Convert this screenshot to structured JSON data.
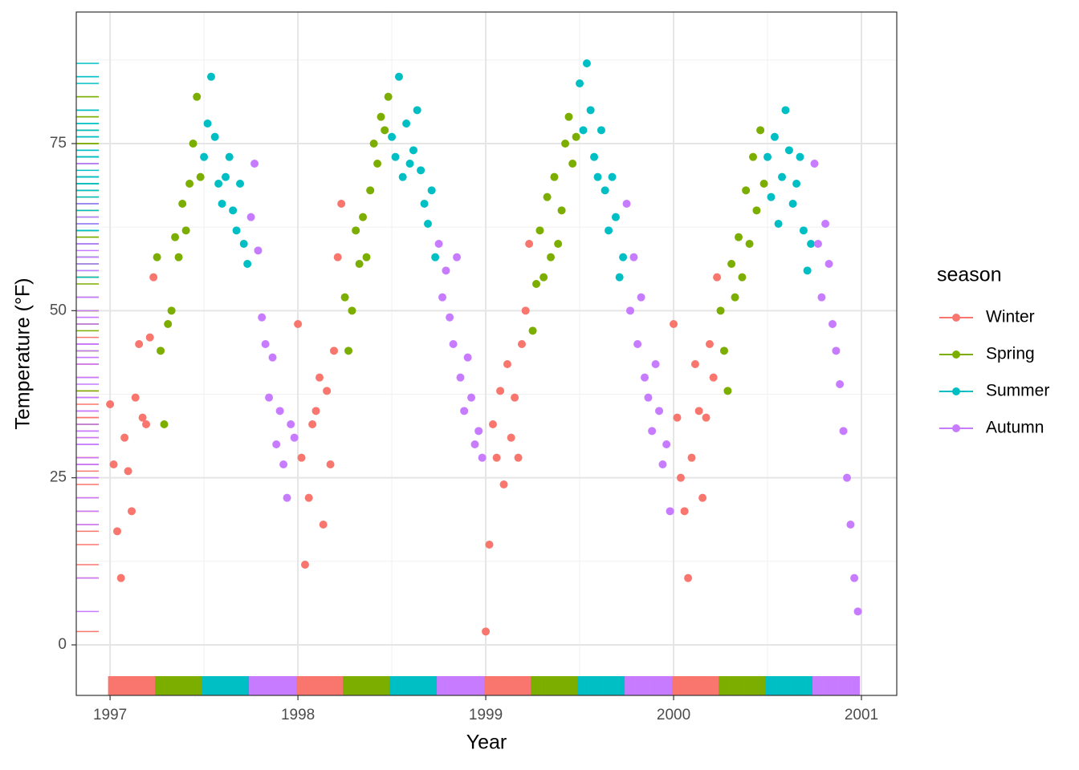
{
  "chart_data": {
    "type": "scatter",
    "x_label": "Year",
    "y_label": "Temperature (°F)",
    "xlim": [
      1996.82,
      2001.188
    ],
    "ylim": [
      -7.56,
      94.68
    ],
    "xticks": [
      1997,
      1998,
      1999,
      2000,
      2001
    ],
    "yticks": [
      0,
      25,
      50,
      75
    ],
    "x_minor_ticks": [
      1997.5,
      1998.5,
      1999.5,
      2000.5
    ],
    "y_minor_ticks": [
      12.5,
      37.5,
      62.5,
      87.5
    ],
    "grid": true,
    "rug": true,
    "legend_title": "season",
    "legend_position": "right",
    "series": [
      {
        "name": "Winter",
        "color": "#F8766D",
        "x": [
          1997,
          1997.019,
          1997.038,
          1997.058,
          1997.077,
          1997.096,
          1997.115,
          1997.135,
          1997.154,
          1997.173,
          1997.192,
          1997.212,
          1997.231,
          1998,
          1998.019,
          1998.038,
          1998.058,
          1998.077,
          1998.096,
          1998.115,
          1998.135,
          1998.154,
          1998.173,
          1998.192,
          1998.212,
          1998.231,
          1999,
          1999.019,
          1999.038,
          1999.058,
          1999.077,
          1999.096,
          1999.115,
          1999.135,
          1999.154,
          1999.173,
          1999.192,
          1999.212,
          1999.231,
          2000,
          2000.019,
          2000.038,
          2000.058,
          2000.077,
          2000.096,
          2000.115,
          2000.135,
          2000.154,
          2000.173,
          2000.192,
          2000.212,
          2000.231
        ],
        "values": [
          36,
          27,
          17,
          10,
          31,
          26,
          20,
          37,
          45,
          34,
          33,
          46,
          55,
          48,
          28,
          12,
          22,
          33,
          35,
          40,
          18,
          38,
          27,
          44,
          58,
          66,
          2,
          15,
          33,
          28,
          38,
          24,
          42,
          31,
          37,
          28,
          45,
          50,
          60,
          48,
          34,
          25,
          20,
          10,
          28,
          42,
          35,
          22,
          34,
          45,
          40,
          55
        ]
      },
      {
        "name": "Spring",
        "color": "#7CAE00",
        "x": [
          1997.25,
          1997.269,
          1997.288,
          1997.308,
          1997.327,
          1997.346,
          1997.365,
          1997.385,
          1997.404,
          1997.423,
          1997.442,
          1997.462,
          1997.481,
          1998.25,
          1998.269,
          1998.288,
          1998.308,
          1998.327,
          1998.346,
          1998.365,
          1998.385,
          1998.404,
          1998.423,
          1998.442,
          1998.462,
          1998.481,
          1999.25,
          1999.269,
          1999.288,
          1999.308,
          1999.327,
          1999.346,
          1999.365,
          1999.385,
          1999.404,
          1999.423,
          1999.442,
          1999.462,
          1999.481,
          2000.25,
          2000.269,
          2000.288,
          2000.308,
          2000.327,
          2000.346,
          2000.365,
          2000.385,
          2000.404,
          2000.423,
          2000.442,
          2000.462,
          2000.481
        ],
        "values": [
          58,
          44,
          33,
          48,
          50,
          61,
          58,
          66,
          62,
          69,
          75,
          82,
          70,
          52,
          44,
          50,
          62,
          57,
          64,
          58,
          68,
          75,
          72,
          79,
          77,
          82,
          47,
          54,
          62,
          55,
          67,
          58,
          70,
          60,
          65,
          75,
          79,
          72,
          76,
          50,
          44,
          38,
          57,
          52,
          61,
          55,
          68,
          60,
          73,
          65,
          77,
          69
        ]
      },
      {
        "name": "Summer",
        "color": "#00BFC4",
        "x": [
          1997.5,
          1997.519,
          1997.538,
          1997.558,
          1997.577,
          1997.596,
          1997.615,
          1997.635,
          1997.654,
          1997.673,
          1997.692,
          1997.712,
          1997.731,
          1998.5,
          1998.519,
          1998.538,
          1998.558,
          1998.577,
          1998.596,
          1998.615,
          1998.635,
          1998.654,
          1998.673,
          1998.692,
          1998.712,
          1998.731,
          1999.5,
          1999.519,
          1999.538,
          1999.558,
          1999.577,
          1999.596,
          1999.615,
          1999.635,
          1999.654,
          1999.673,
          1999.692,
          1999.712,
          1999.731,
          2000.5,
          2000.519,
          2000.538,
          2000.558,
          2000.577,
          2000.596,
          2000.615,
          2000.635,
          2000.654,
          2000.673,
          2000.692,
          2000.712,
          2000.731
        ],
        "values": [
          73,
          78,
          85,
          76,
          69,
          66,
          70,
          73,
          65,
          62,
          69,
          60,
          57,
          76,
          73,
          85,
          70,
          78,
          72,
          74,
          80,
          71,
          66,
          63,
          68,
          58,
          84,
          77,
          87,
          80,
          73,
          70,
          77,
          68,
          62,
          70,
          64,
          55,
          58,
          73,
          67,
          76,
          63,
          70,
          80,
          74,
          66,
          69,
          73,
          62,
          56,
          60
        ]
      },
      {
        "name": "Autumn",
        "color": "#C77CFF",
        "x": [
          1997.75,
          1997.769,
          1997.788,
          1997.808,
          1997.827,
          1997.846,
          1997.865,
          1997.885,
          1997.904,
          1997.923,
          1997.942,
          1997.962,
          1997.981,
          1998.75,
          1998.769,
          1998.788,
          1998.808,
          1998.827,
          1998.846,
          1998.865,
          1998.885,
          1998.904,
          1998.923,
          1998.942,
          1998.962,
          1998.981,
          1999.75,
          1999.769,
          1999.788,
          1999.808,
          1999.827,
          1999.846,
          1999.865,
          1999.885,
          1999.904,
          1999.923,
          1999.942,
          1999.962,
          1999.981,
          2000.75,
          2000.769,
          2000.788,
          2000.808,
          2000.827,
          2000.846,
          2000.865,
          2000.885,
          2000.904,
          2000.923,
          2000.942,
          2000.962,
          2000.981
        ],
        "values": [
          64,
          72,
          59,
          49,
          45,
          37,
          43,
          30,
          35,
          27,
          22,
          33,
          31,
          60,
          52,
          56,
          49,
          45,
          58,
          40,
          35,
          43,
          37,
          30,
          32,
          28,
          66,
          50,
          58,
          45,
          52,
          40,
          37,
          32,
          42,
          35,
          27,
          30,
          20,
          72,
          60,
          52,
          63,
          57,
          48,
          44,
          39,
          32,
          25,
          18,
          10,
          5
        ]
      }
    ]
  }
}
